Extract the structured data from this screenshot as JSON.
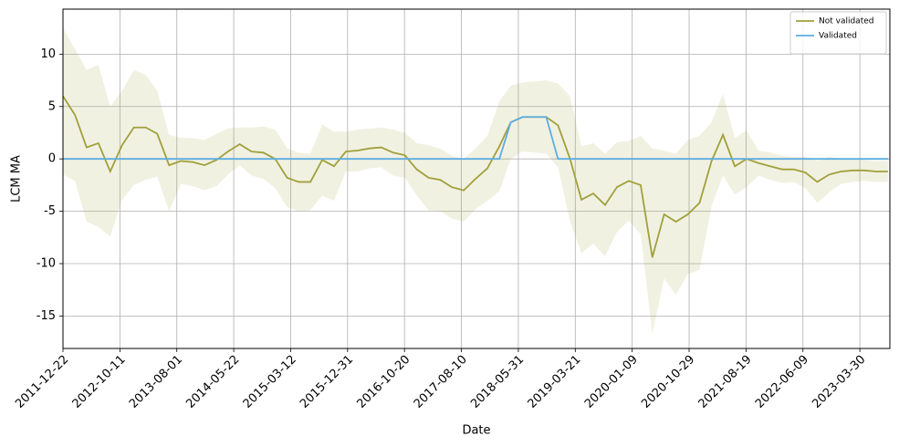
{
  "chart_data": {
    "type": "line",
    "x_label": "Date",
    "y_label": "LCM MA",
    "x": [
      "2011-12-22",
      "2012-02-22",
      "2012-04-22",
      "2012-06-22",
      "2012-08-22",
      "2012-10-22",
      "2012-12-22",
      "2013-02-22",
      "2013-04-22",
      "2013-06-22",
      "2013-08-22",
      "2013-10-22",
      "2013-12-22",
      "2014-02-22",
      "2014-04-22",
      "2014-06-22",
      "2014-08-22",
      "2014-10-22",
      "2014-12-22",
      "2015-02-22",
      "2015-04-22",
      "2015-06-22",
      "2015-08-22",
      "2015-10-22",
      "2015-12-22",
      "2016-02-22",
      "2016-04-22",
      "2016-06-22",
      "2016-08-22",
      "2016-10-22",
      "2016-12-22",
      "2017-02-22",
      "2017-04-22",
      "2017-06-22",
      "2017-08-22",
      "2017-10-22",
      "2017-12-22",
      "2018-02-22",
      "2018-04-22",
      "2018-06-22",
      "2018-08-22",
      "2018-10-22",
      "2018-12-22",
      "2019-02-22",
      "2019-04-22",
      "2019-06-22",
      "2019-08-22",
      "2019-10-22",
      "2019-12-22",
      "2020-02-22",
      "2020-04-22",
      "2020-06-22",
      "2020-08-22",
      "2020-10-22",
      "2020-12-22",
      "2021-02-22",
      "2021-04-22",
      "2021-06-22",
      "2021-08-22",
      "2021-10-22",
      "2021-12-22",
      "2022-02-22",
      "2022-04-22",
      "2022-06-22",
      "2022-08-22",
      "2022-10-22",
      "2022-12-22",
      "2023-02-22",
      "2023-04-22",
      "2023-06-22",
      "2023-08-22"
    ],
    "xlim": [
      "2011-12-22",
      "2023-09-01"
    ],
    "xticks": [
      "2011-12-22",
      "2012-10-11",
      "2013-08-01",
      "2014-05-22",
      "2015-03-12",
      "2015-12-31",
      "2016-10-20",
      "2017-08-10",
      "2018-05-31",
      "2019-03-21",
      "2020-01-09",
      "2020-10-29",
      "2021-08-19",
      "2022-06-09",
      "2023-03-30"
    ],
    "ylim": [
      -18.1,
      14.3
    ],
    "yticks": [
      -15,
      -10,
      -5,
      0,
      5,
      10
    ],
    "grid": true,
    "legend": "upper right",
    "series": [
      {
        "name": "Not validated",
        "color": "#a0a03c",
        "band_color": "#a0a03c",
        "values": [
          6,
          4.2,
          1.1,
          1.5,
          -1.2,
          1.3,
          3,
          3,
          2.4,
          -0.6,
          -0.2,
          -0.3,
          -0.6,
          -0.1,
          0.7,
          1.4,
          0.7,
          0.6,
          0,
          -1.8,
          -2.2,
          -2.2,
          -0.1,
          -0.7,
          0.7,
          0.8,
          1,
          1.1,
          0.6,
          0.35,
          -1,
          -1.8,
          -2,
          -2.7,
          -3,
          -1.9,
          -0.9,
          1.2,
          3.5,
          4,
          4,
          4,
          3.2,
          0,
          -3.9,
          -3.3,
          -4.4,
          -2.7,
          -2.1,
          -2.5,
          -9.4,
          -5.3,
          -6,
          -5.3,
          -4.2,
          -0.2,
          2.3,
          -0.7,
          0,
          -0.4,
          -0.7,
          -1,
          -1,
          -1.3,
          -2.2,
          -1.5,
          -1.2,
          -1.1,
          -1.1,
          -1.2,
          -1.2
        ],
        "band_upper": [
          12.5,
          10.5,
          8.5,
          9,
          5,
          6.5,
          8.5,
          8,
          6.5,
          2.3,
          2,
          2,
          1.8,
          2.4,
          2.9,
          3,
          3,
          3.1,
          2.8,
          1,
          0.6,
          0.5,
          3.3,
          2.6,
          2.6,
          2.8,
          2.9,
          3,
          2.8,
          2.5,
          1.5,
          1.3,
          1,
          0.3,
          0,
          1,
          2.2,
          5.5,
          7,
          7.3,
          7.4,
          7.5,
          7.2,
          6,
          1.2,
          1.5,
          0.5,
          1.6,
          1.7,
          2.2,
          1,
          0.8,
          0.5,
          1.8,
          2.2,
          3.5,
          6.2,
          2,
          2.7,
          0.8,
          0.6,
          0.3,
          0.2,
          0.2,
          -0.2,
          0.2,
          0,
          0,
          -0.1,
          -0.2,
          -0.2
        ],
        "band_lower": [
          -1.5,
          -2.1,
          -6,
          -6.5,
          -7.4,
          -3.9,
          -2.5,
          -2,
          -1.7,
          -5,
          -2.4,
          -2.6,
          -3,
          -2.6,
          -1.5,
          -0.6,
          -1.6,
          -1.9,
          -2.8,
          -4.6,
          -5,
          -4.9,
          -3.5,
          -4,
          -1.2,
          -1.2,
          -0.9,
          -0.8,
          -1.6,
          -1.8,
          -3.5,
          -4.9,
          -5,
          -5.7,
          -6,
          -4.8,
          -4,
          -3.1,
          0,
          0.7,
          0.6,
          0.5,
          -0.8,
          -6,
          -9,
          -8.1,
          -9.3,
          -7,
          -5.9,
          -7.2,
          -16.7,
          -11.4,
          -13,
          -11,
          -10.6,
          -4.5,
          -1.6,
          -3.4,
          -2.7,
          -1.6,
          -2,
          -2.3,
          -2.2,
          -2.8,
          -4.2,
          -3.2,
          -2.4,
          -2.2,
          -2.1,
          -2.2,
          -2.2
        ]
      },
      {
        "name": "Validated",
        "color": "#5dade2",
        "values": [
          0,
          0,
          0,
          0,
          0,
          0,
          0,
          0,
          0,
          0,
          0,
          0,
          0,
          0,
          0,
          0,
          0,
          0,
          0,
          0,
          0,
          0,
          0,
          0,
          0,
          0,
          0,
          0,
          0,
          0,
          0,
          0,
          0,
          0,
          0,
          0,
          0,
          0,
          3.5,
          4,
          4,
          4,
          0,
          0,
          0,
          0,
          0,
          0,
          0,
          0,
          0,
          0,
          0,
          0,
          0,
          0,
          0,
          0,
          0,
          0,
          0,
          0,
          0,
          0,
          0,
          0,
          0,
          0,
          0,
          0,
          0
        ]
      }
    ]
  }
}
